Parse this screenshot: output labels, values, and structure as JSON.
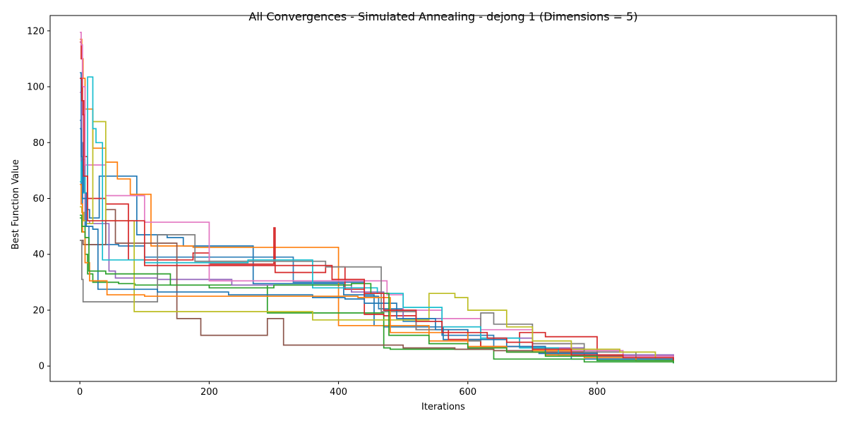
{
  "chart_data": {
    "type": "line",
    "title": "All Convergences - Simulated Annealing - dejong 1 (Dimensions = 5)",
    "xlabel": "Iterations",
    "ylabel": "Best Function Value",
    "xlim": [
      -46,
      1170
    ],
    "ylim": [
      -5.5,
      125.5
    ],
    "xticks": [
      0,
      200,
      400,
      600,
      800
    ],
    "yticks": [
      0,
      20,
      40,
      60,
      80,
      100,
      120
    ],
    "grid": false,
    "legend": "none",
    "series": [
      {
        "color": "#1f77b4",
        "x": [
          0,
          2,
          4,
          6,
          10,
          15,
          22,
          30,
          60,
          88,
          100,
          135,
          160,
          268,
          290,
          408,
          430,
          455,
          470,
          520,
          562,
          620,
          660,
          710,
          760,
          918
        ],
        "y": [
          105,
          80,
          70,
          62,
          56,
          53,
          53,
          68,
          68,
          47,
          47,
          46,
          43,
          29.5,
          29.5,
          25.5,
          25.5,
          14.5,
          14,
          14,
          9.5,
          7,
          5,
          4.5,
          2.5,
          2
        ]
      },
      {
        "color": "#ff7f0e",
        "x": [
          0,
          3,
          5,
          8,
          12,
          20,
          40,
          58,
          78,
          95,
          110,
          160,
          175,
          300,
          355,
          400,
          500,
          540,
          620,
          700,
          780,
          860,
          918
        ],
        "y": [
          117,
          110,
          103,
          92,
          92,
          78,
          73,
          67,
          61.5,
          61.5,
          43,
          43,
          42.5,
          42.5,
          42.5,
          14.5,
          14.5,
          9,
          7,
          5.5,
          4,
          3,
          2.5
        ]
      },
      {
        "color": "#2c7fb8",
        "x": [
          0,
          2,
          4,
          8,
          14,
          30,
          60,
          100,
          240,
          330,
          408,
          440,
          462,
          500,
          560,
          640,
          720,
          800,
          918
        ],
        "y": [
          88,
          65,
          55,
          50,
          43.5,
          43.5,
          43,
          39,
          39,
          30,
          30,
          25,
          20.5,
          16,
          11,
          7,
          5,
          3,
          1.5
        ]
      },
      {
        "color": "#2ca02c",
        "x": [
          0,
          3,
          8,
          12,
          20,
          35,
          60,
          85,
          180,
          290,
          330,
          420,
          470,
          480,
          560,
          640,
          700,
          780,
          918
        ],
        "y": [
          53,
          48,
          40,
          33,
          30,
          30,
          29.5,
          29,
          29,
          19,
          19,
          19,
          6.5,
          6,
          6,
          2.5,
          2.5,
          1.5,
          1
        ]
      },
      {
        "color": "#d62728",
        "x": [
          0,
          2,
          4,
          7,
          12,
          40,
          75,
          130,
          175,
          200,
          300,
          302,
          380,
          410,
          440,
          470,
          520,
          570,
          620,
          680,
          720,
          800,
          918
        ],
        "y": [
          116,
          110,
          90,
          75,
          60,
          58,
          38,
          38,
          40.5,
          36.5,
          49.5,
          33.5,
          35.5,
          27.5,
          18.5,
          18,
          13,
          9.5,
          7,
          12,
          10.5,
          4,
          2.5
        ]
      },
      {
        "color": "#9467bd",
        "x": [
          0,
          3,
          8,
          15,
          30,
          45,
          55,
          90,
          120,
          175,
          200,
          235,
          300,
          420,
          470,
          500,
          560,
          620,
          700,
          780,
          918
        ],
        "y": [
          98,
          74,
          52,
          51,
          51,
          34,
          31.5,
          31.5,
          31,
          31,
          31,
          29,
          29,
          26.5,
          20,
          17,
          14,
          10,
          6.5,
          4,
          2
        ]
      },
      {
        "color": "#8c564b",
        "x": [
          0,
          2,
          5,
          8,
          15,
          40,
          55,
          120,
          150,
          187,
          290,
          310,
          315,
          420,
          460,
          500,
          580,
          640,
          700,
          800,
          918
        ],
        "y": [
          45,
          45,
          43.5,
          43.5,
          43.5,
          56,
          44,
          44,
          17,
          11,
          17,
          17,
          7.5,
          7.5,
          7.5,
          6.5,
          6,
          5.5,
          5,
          3.5,
          2
        ]
      },
      {
        "color": "#e377c2",
        "x": [
          0,
          2,
          4,
          8,
          15,
          40,
          60,
          100,
          150,
          200,
          250,
          400,
          435,
          475,
          500,
          560,
          620,
          700,
          760,
          840,
          918
        ],
        "y": [
          119.5,
          115,
          100,
          72,
          72,
          61,
          61,
          51.5,
          51.5,
          30.5,
          30.5,
          30.5,
          30.5,
          25.5,
          20,
          17,
          13,
          8,
          5.5,
          3.5,
          2
        ]
      },
      {
        "color": "#7f7f7f",
        "x": [
          0,
          3,
          5,
          10,
          20,
          55,
          120,
          175,
          178,
          380,
          460,
          466,
          520,
          600,
          620,
          640,
          700,
          780,
          860,
          918
        ],
        "y": [
          45,
          31,
          23,
          23,
          23,
          23,
          47,
          47,
          37.5,
          35.5,
          35.5,
          19.5,
          13,
          9,
          19,
          15,
          8,
          5,
          3,
          2
        ]
      },
      {
        "color": "#bcbd22",
        "x": [
          0,
          3,
          6,
          10,
          20,
          30,
          40,
          80,
          84,
          200,
          290,
          350,
          360,
          470,
          540,
          580,
          600,
          660,
          700,
          760,
          835,
          890,
          918
        ],
        "y": [
          57,
          55,
          52,
          51,
          87.5,
          87.5,
          52,
          52,
          19.5,
          19.5,
          19.5,
          19.5,
          16.5,
          16.5,
          26,
          24.5,
          20,
          14,
          9,
          6,
          5,
          2.5,
          1.5
        ]
      },
      {
        "color": "#17becf",
        "x": [
          0,
          2,
          4,
          8,
          12,
          20,
          25,
          35,
          60,
          100,
          200,
          260,
          350,
          360,
          410,
          460,
          500,
          560,
          620,
          680,
          740,
          800,
          918
        ],
        "y": [
          66,
          73,
          62,
          68,
          103.5,
          85,
          80,
          38,
          38,
          37,
          37,
          38,
          38,
          28,
          28,
          26,
          21,
          14,
          10,
          6.5,
          4,
          2,
          1
        ]
      },
      {
        "color": "#1f77b4",
        "x": [
          0,
          2,
          4,
          10,
          20,
          28,
          60,
          90,
          120,
          230,
          300,
          360,
          410,
          440,
          490,
          550,
          600,
          660,
          720,
          800,
          918
        ],
        "y": [
          85,
          75,
          60,
          50,
          49,
          27.5,
          27.5,
          27.5,
          26.5,
          25.5,
          25.5,
          24.5,
          24,
          22.5,
          17,
          13,
          9.5,
          7,
          4.5,
          2.5,
          1.5
        ]
      },
      {
        "color": "#ff7f0e",
        "x": [
          0,
          2,
          4,
          8,
          15,
          30,
          42,
          70,
          100,
          200,
          340,
          430,
          480,
          540,
          600,
          660,
          720,
          780,
          860,
          918
        ],
        "y": [
          65,
          58,
          48,
          37,
          30.5,
          30.5,
          25.5,
          25.5,
          25,
          25,
          25,
          24.5,
          12,
          12,
          7,
          5,
          4,
          3,
          2,
          1.5
        ]
      },
      {
        "color": "#2ca02c",
        "x": [
          0,
          3,
          8,
          14,
          40,
          55,
          80,
          140,
          200,
          300,
          395,
          420,
          450,
          478,
          540,
          600,
          660,
          720,
          800,
          918
        ],
        "y": [
          54,
          50,
          46,
          34,
          33,
          33,
          33,
          29,
          28,
          29,
          29,
          29.5,
          26,
          11,
          8,
          6.5,
          5,
          3.5,
          2,
          1
        ]
      },
      {
        "color": "#d62728",
        "x": [
          0,
          3,
          6,
          12,
          30,
          60,
          100,
          160,
          200,
          280,
          320,
          370,
          390,
          440,
          470,
          520,
          560,
          630,
          660,
          700,
          760,
          840,
          918
        ],
        "y": [
          103,
          95,
          68,
          52,
          52,
          52,
          36,
          36,
          36,
          36,
          36,
          36,
          31,
          26,
          20,
          16,
          12,
          10,
          8.5,
          6,
          4,
          3,
          2
        ]
      }
    ]
  }
}
